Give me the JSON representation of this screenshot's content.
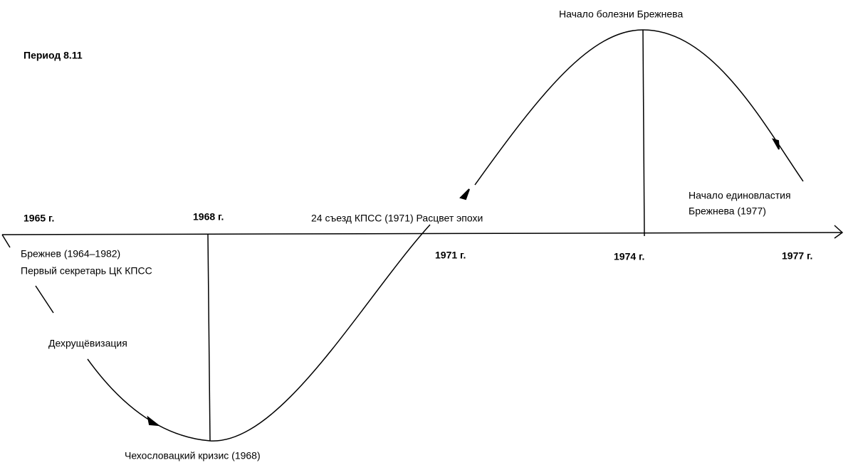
{
  "title": "Период 8.11",
  "years": [
    "1965 г.",
    "1968 г.",
    "1971 г.",
    "1974 г.",
    "1977 г."
  ],
  "events": [
    {
      "lines": [
        "Брежнев (1964–1982)",
        "Первый секретарь ЦК КПСС"
      ]
    },
    {
      "lines": [
        "Дехрущёвизация"
      ]
    },
    {
      "lines": [
        "Чехословацкий кризис (1968)"
      ]
    },
    {
      "lines": [
        "24 съезд КПСС (1971) Расцвет эпохи"
      ]
    },
    {
      "lines": [
        "Начало болезни Брежнева"
      ]
    },
    {
      "lines": [
        "Начало единовластия",
        "Брежнева (1977)"
      ]
    }
  ]
}
